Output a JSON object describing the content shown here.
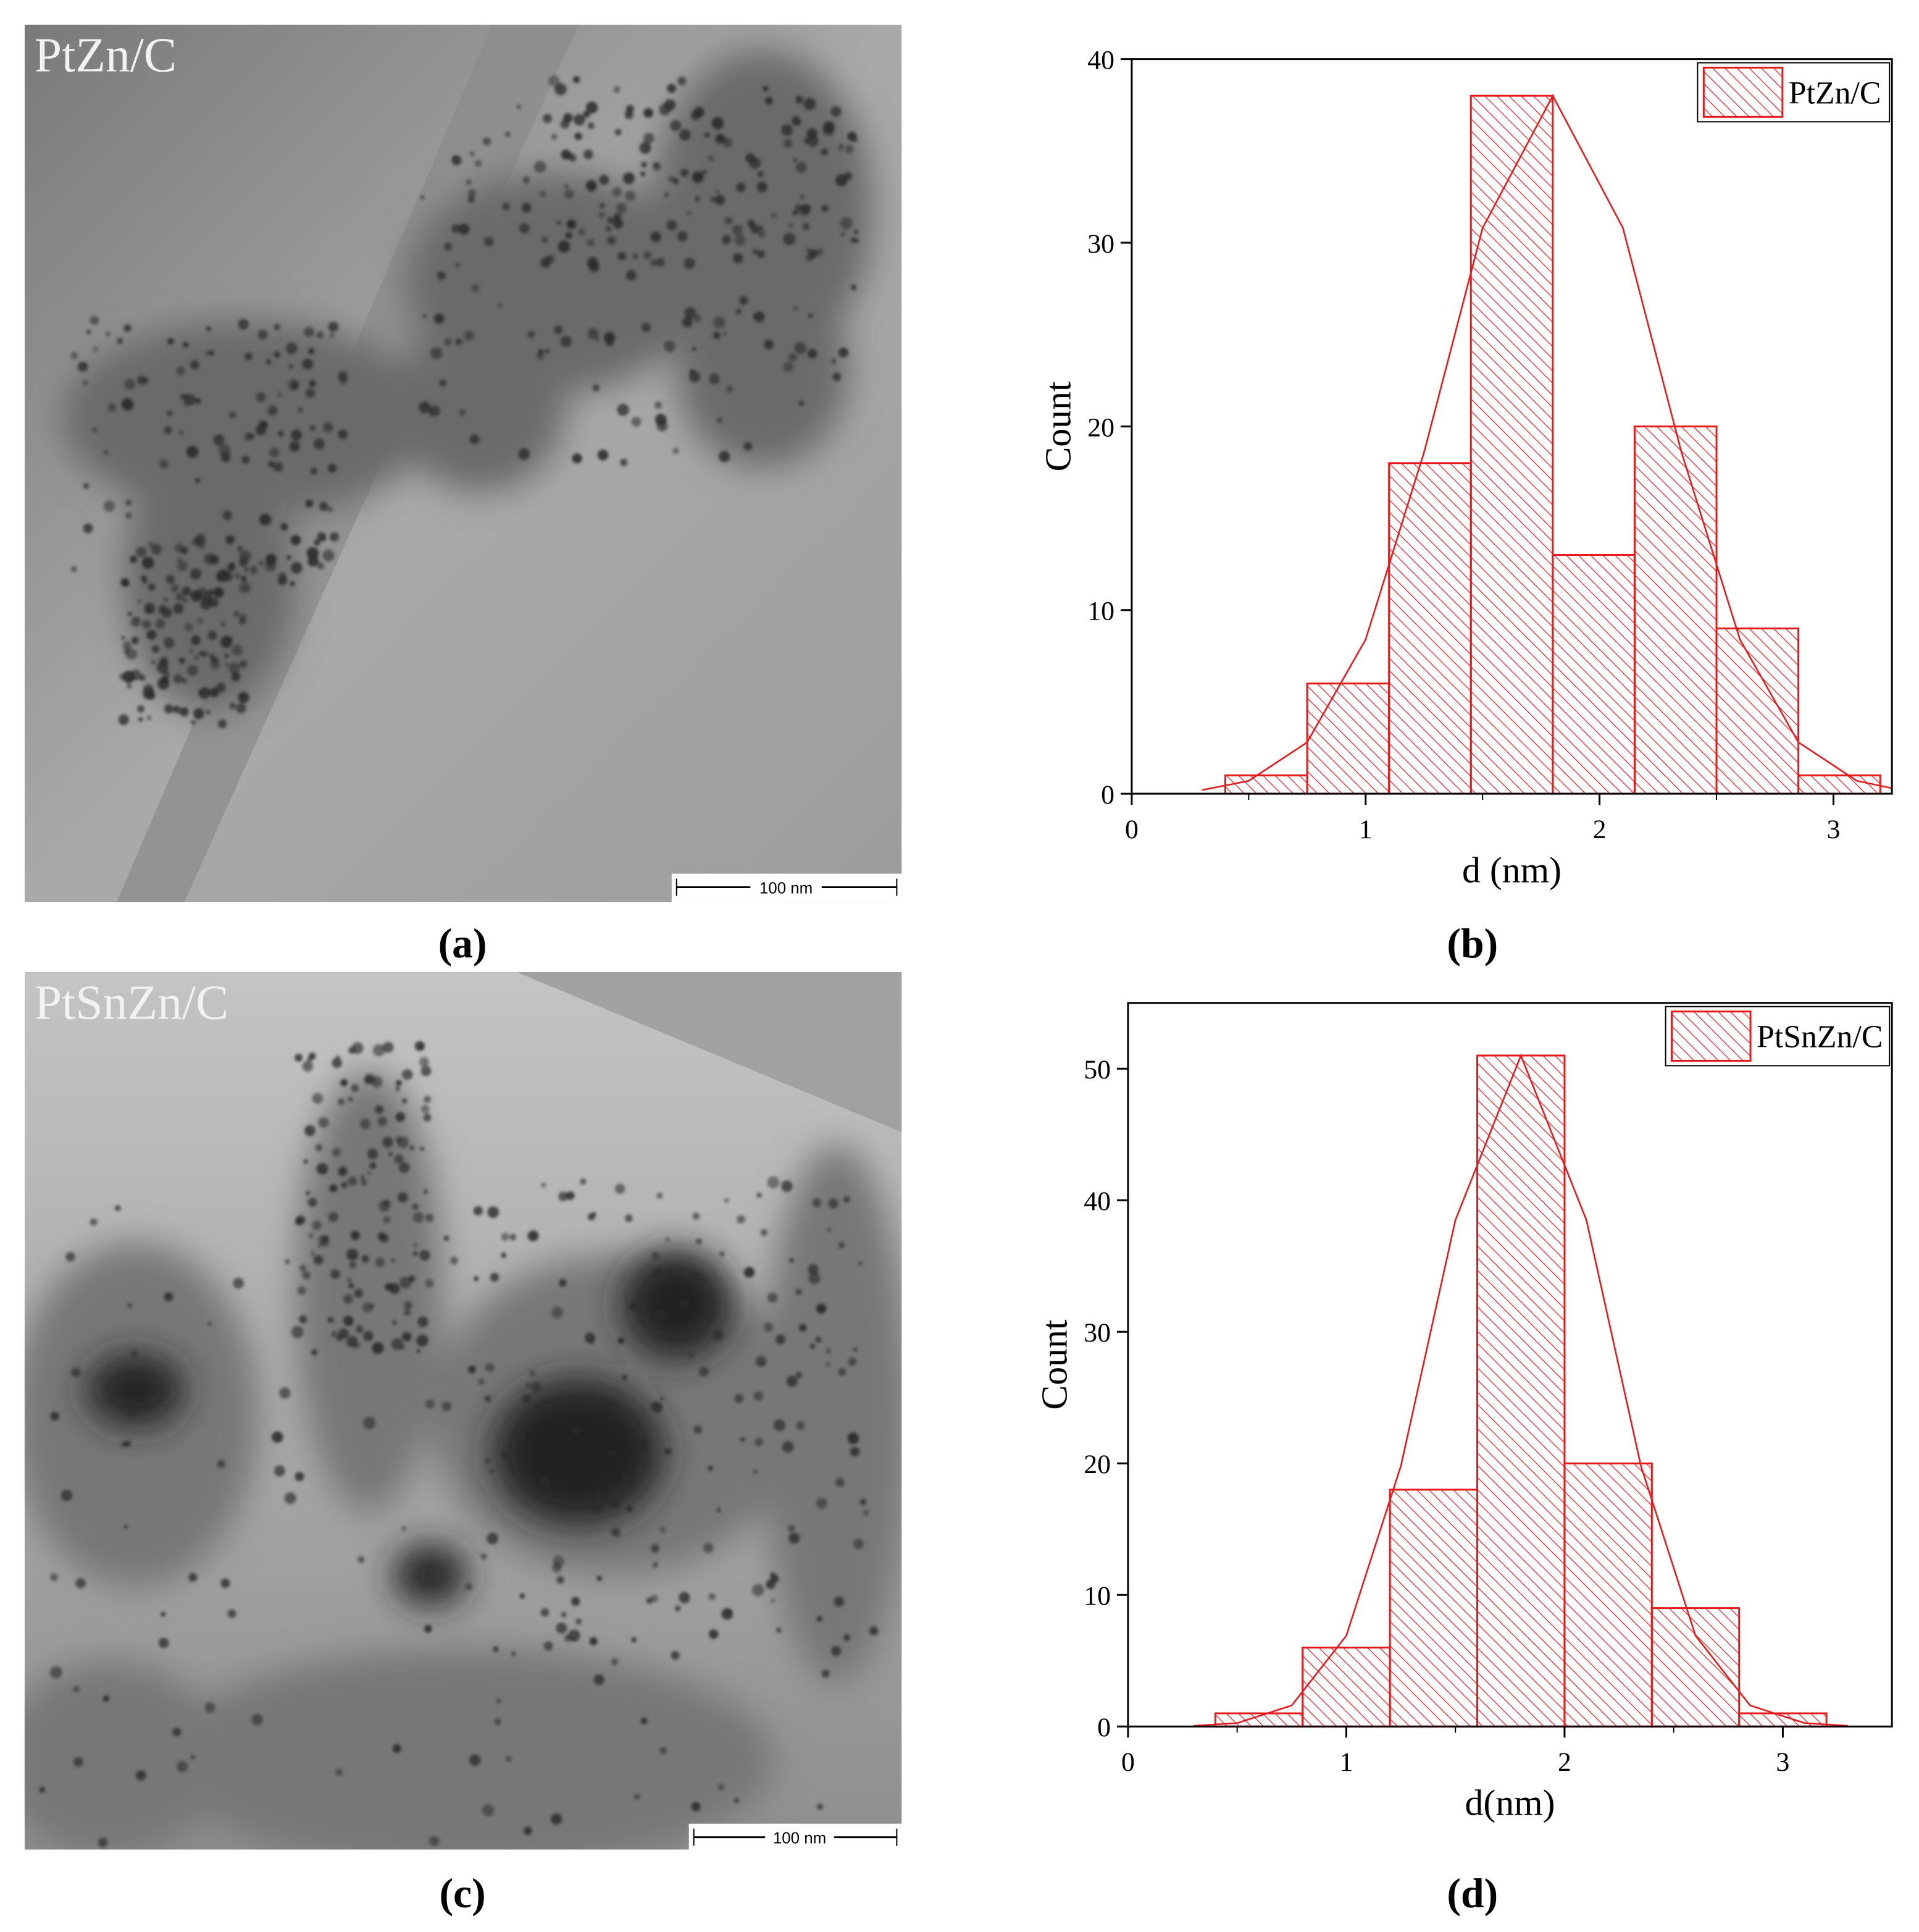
{
  "figure": {
    "panels": [
      {
        "label": "(a)",
        "image_label": "PtZn/C",
        "scale_bar": "100 nm"
      },
      {
        "label": "(b)"
      },
      {
        "label": "(c)",
        "image_label": "PtSnZn/C",
        "scale_bar": "100 nm"
      },
      {
        "label": "(d)"
      }
    ]
  },
  "chart_data": [
    {
      "type": "histogram",
      "xlabel": "d (nm)",
      "ylabel": "Count",
      "bins": [
        0.4,
        0.75,
        1.1,
        1.45,
        1.8,
        2.15,
        2.5,
        2.85,
        3.2
      ],
      "series": [
        {
          "name": "PtZn/C",
          "color": "#e8191b",
          "values": [
            1,
            6,
            18,
            38,
            13,
            20,
            9,
            1
          ]
        }
      ],
      "fit": {
        "x": [
          0.3,
          0.5,
          0.75,
          1.0,
          1.25,
          1.5,
          1.8,
          2.1,
          2.35,
          2.6,
          2.85,
          3.1,
          3.25
        ],
        "values": [
          0.2,
          0.7,
          2.8,
          8.4,
          18.6,
          30.8,
          38,
          30.8,
          18.6,
          8.4,
          2.8,
          0.7,
          0.3
        ]
      },
      "xlim": [
        0,
        3.25
      ],
      "xticks": [
        0,
        1,
        2,
        3
      ],
      "ylim": [
        0,
        40
      ],
      "yticks": [
        0,
        10,
        20,
        30,
        40
      ],
      "legend": "upper right"
    },
    {
      "type": "histogram",
      "xlabel": "d(nm)",
      "ylabel": "Count",
      "bins": [
        0.4,
        0.8,
        1.2,
        1.6,
        2.0,
        2.4,
        2.8,
        3.2
      ],
      "series": [
        {
          "name": "PtSnZn/C",
          "color": "#e8191b",
          "values": [
            1,
            6,
            18,
            51,
            20,
            9,
            1
          ]
        }
      ],
      "fit": {
        "x": [
          0.3,
          0.5,
          0.75,
          1.0,
          1.25,
          1.5,
          1.8,
          2.1,
          2.35,
          2.6,
          2.85,
          3.1,
          3.3
        ],
        "values": [
          0.05,
          0.26,
          1.6,
          6.9,
          19.8,
          38.5,
          51,
          38.5,
          19.8,
          6.9,
          1.6,
          0.26,
          0.05
        ]
      },
      "xlim": [
        0,
        3.5
      ],
      "xticks": [
        0,
        1,
        2,
        3
      ],
      "ylim": [
        0,
        55
      ],
      "yticks": [
        0,
        10,
        20,
        30,
        40,
        50
      ],
      "legend": "upper right"
    }
  ]
}
